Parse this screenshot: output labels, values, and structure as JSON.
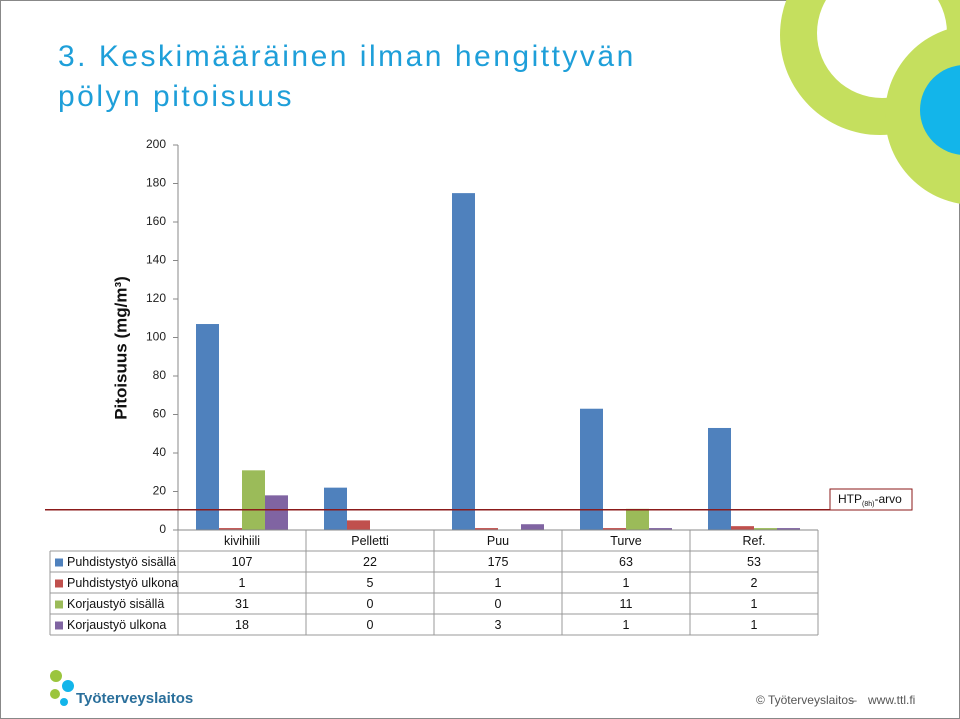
{
  "title_lines": [
    "3. Keskimääräinen ilman hengittyvän",
    "pölyn pitoisuus"
  ],
  "chart_data": {
    "type": "bar",
    "y_label": "Pitoisuus (mg/m³)",
    "categories": [
      "kivihiili",
      "Pelletti",
      "Puu",
      "Turve",
      "Ref."
    ],
    "series": [
      {
        "name": "Puhdistystyö sisällä",
        "color": "#4f81bd",
        "values": [
          107,
          22,
          175,
          63,
          53
        ]
      },
      {
        "name": "Puhdistystyö ulkona",
        "color": "#c0504d",
        "values": [
          1,
          5,
          1,
          1,
          2
        ]
      },
      {
        "name": "Korjaustyö sisällä",
        "color": "#9bbb59",
        "values": [
          31,
          0,
          0,
          11,
          1
        ]
      },
      {
        "name": "Korjaustyö ulkona",
        "color": "#8064a2",
        "values": [
          18,
          0,
          3,
          1,
          1
        ]
      }
    ],
    "ylim": [
      0,
      200
    ],
    "yticks": [
      0,
      20,
      40,
      60,
      80,
      100,
      120,
      140,
      160,
      180,
      200
    ],
    "reference_line": {
      "label": "HTP",
      "subscript": "(8h)",
      "suffix": "-arvo",
      "value": 10.5,
      "color": "#8b1a1a"
    }
  },
  "footer": {
    "logo": "Työterveyslaitos",
    "copyright": "© Työterveyslaitos",
    "url": "www.ttl.fi"
  }
}
